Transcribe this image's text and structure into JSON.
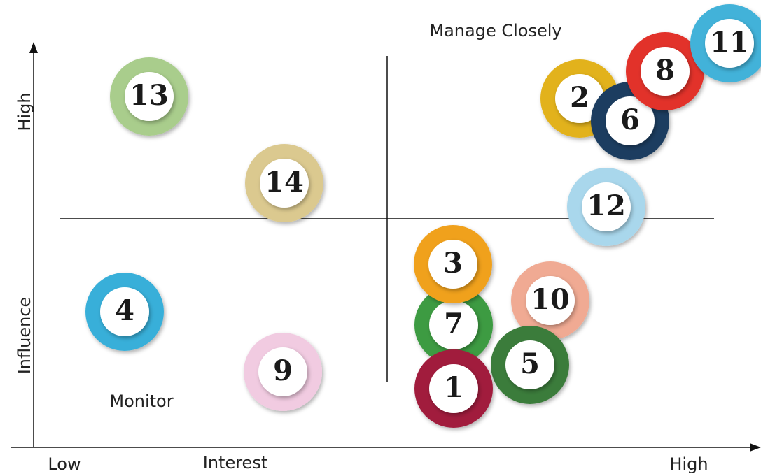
{
  "quadrants": {
    "top_right": "Manage Closely",
    "bottom_left": "Monitor"
  },
  "axes": {
    "x_label": "Interest",
    "x_low": "Low",
    "x_high": "High",
    "y_label": "Influence",
    "y_high": "High"
  },
  "nodes": [
    {
      "label": "13",
      "color": "#a9cd8c"
    },
    {
      "label": "14",
      "color": "#dbc98f"
    },
    {
      "label": "4",
      "color": "#38afd9"
    },
    {
      "label": "9",
      "color": "#f1cbe1"
    },
    {
      "label": "10",
      "color": "#f0aa93"
    },
    {
      "label": "5",
      "color": "#3b7c3a"
    },
    {
      "label": "7",
      "color": "#3c9b42"
    },
    {
      "label": "3",
      "color": "#f0a11f"
    },
    {
      "label": "1",
      "color": "#a11d3d"
    },
    {
      "label": "12",
      "color": "#a9d7ec"
    },
    {
      "label": "2",
      "color": "#e2b21f"
    },
    {
      "label": "6",
      "color": "#1b3d60"
    },
    {
      "label": "8",
      "color": "#e2302a"
    },
    {
      "label": "11",
      "color": "#42b2d9"
    }
  ]
}
